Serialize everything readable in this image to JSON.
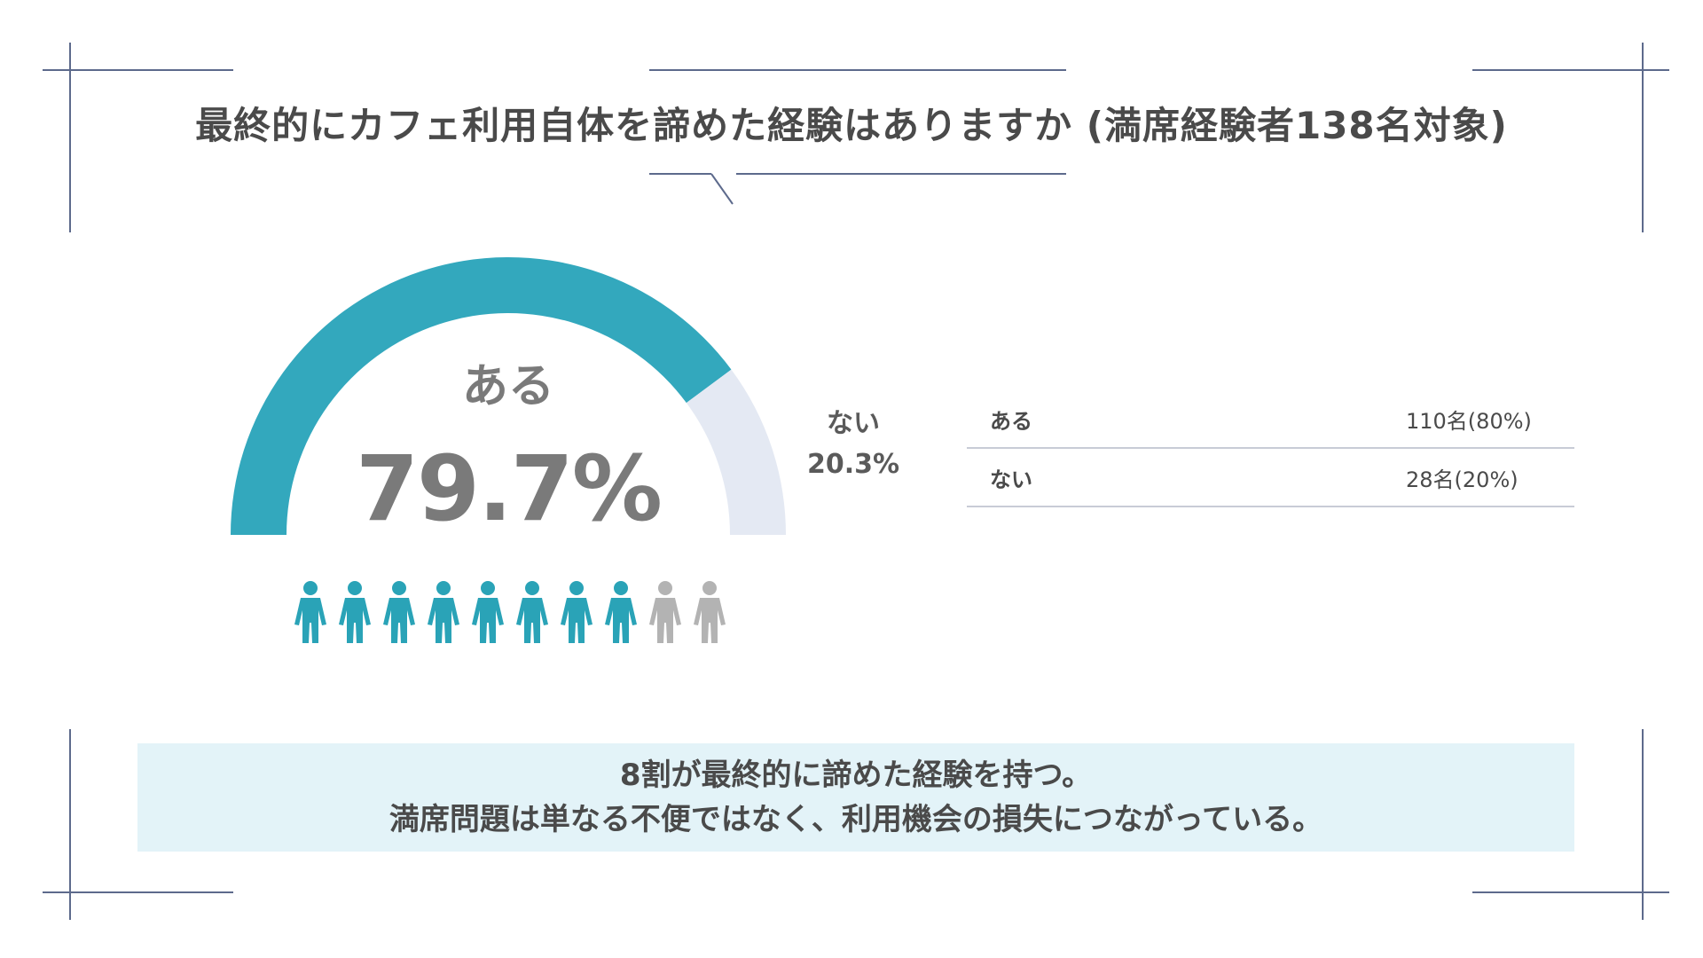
{
  "title": "最終的にカフェ利用自体を諦めた経験はありますか (満席経験者138名対象)",
  "chart_data": {
    "type": "pie",
    "categories": [
      "ある",
      "ない"
    ],
    "values": [
      79.7,
      20.3
    ],
    "center_label": "ある",
    "center_value": "79.7%",
    "side_label": "ない",
    "side_value": "20.3%",
    "pictogram": {
      "total": 10,
      "filled": 8
    },
    "colors": {
      "aru": "#33a8bd",
      "nai": "#e4e9f3",
      "person_filled": "#2aa3b7",
      "person_empty": "#b3b3b3"
    }
  },
  "table": {
    "rows": [
      {
        "label": "ある",
        "value": "110名(80%)"
      },
      {
        "label": "ない",
        "value": "28名(20%)"
      }
    ]
  },
  "conclusion": {
    "line1": "8割が最終的に諦めた経験を持つ。",
    "line2": "満席問題は単なる不便ではなく、利用機会の損失につながっている。"
  }
}
